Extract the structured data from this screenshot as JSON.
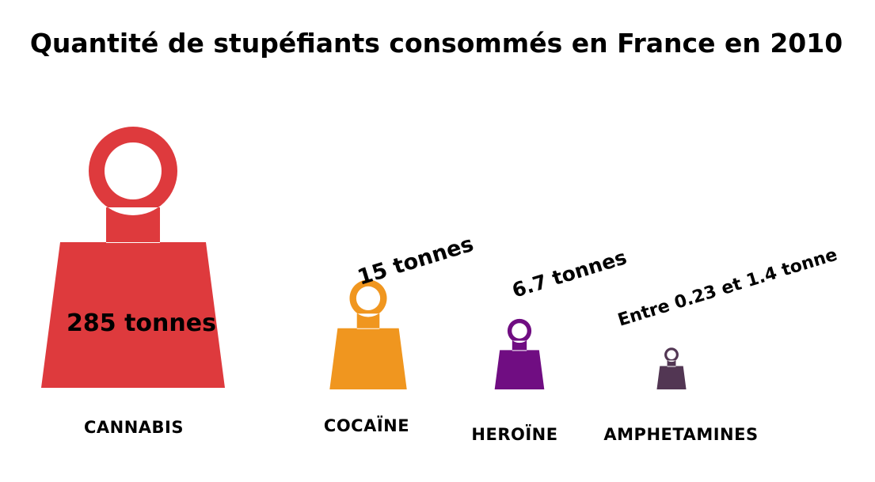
{
  "chart_data": {
    "type": "pictogram",
    "title": "Quantité de stupéfiants consommés en France en 2010",
    "unit": "tonnes",
    "categories": [
      "CANNABIS",
      "COCAÏNE",
      "HEROÏNE",
      "AMPHETAMINES"
    ],
    "values": [
      285,
      15,
      6.7,
      0.8
    ],
    "value_ranges": [
      null,
      null,
      null,
      [
        0.23,
        1.4
      ]
    ],
    "value_labels": [
      "285 tonnes",
      "15 tonnes",
      "6.7 tonnes",
      "Entre 0.23 et 1.4 tonne"
    ],
    "colors": [
      "#de3a3d",
      "#f0961f",
      "#700d82",
      "#523653"
    ]
  }
}
